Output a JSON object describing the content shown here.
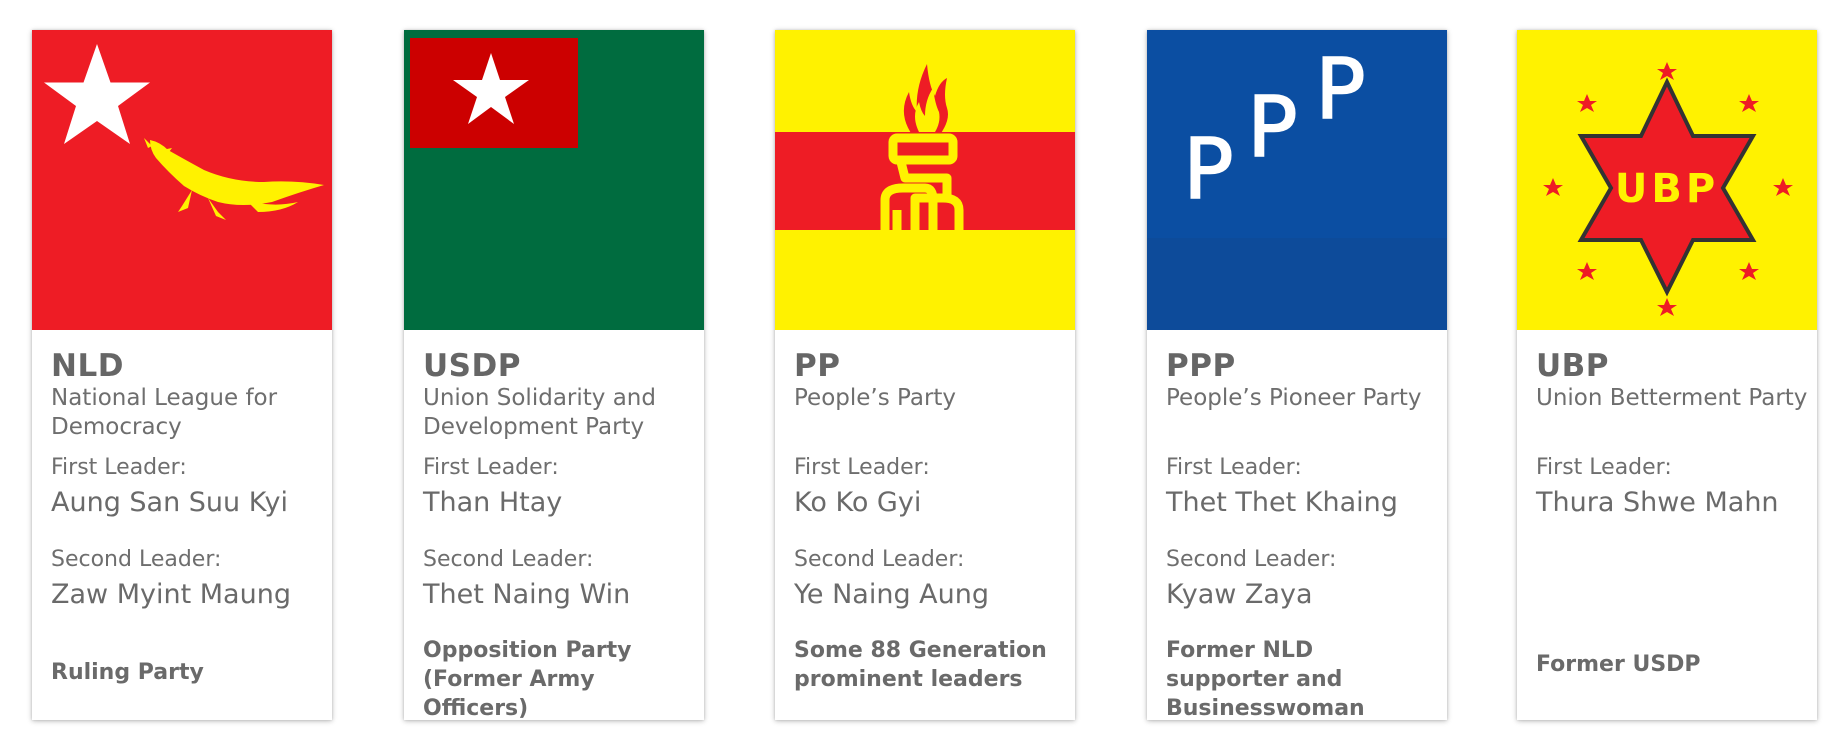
{
  "colors": {
    "red": "#ee1c25",
    "yellow": "#fff200",
    "green": "#006c3f",
    "blue": "#0b4ea2",
    "dark_red": "#cc0000",
    "text": "#666666"
  },
  "parties": [
    {
      "abbr": "NLD",
      "name": "National League for Democracy",
      "first_leader_label": "First Leader:",
      "first_leader": "Aung San Suu Kyi",
      "second_leader_label": "Second Leader:",
      "second_leader": "Zaw Myint Maung",
      "note": "Ruling Party",
      "flag_icon": "nld-flag-star-peacock-icon"
    },
    {
      "abbr": "USDP",
      "name": "Union Solidarity and Development Party",
      "first_leader_label": "First Leader:",
      "first_leader": "Than Htay",
      "second_leader_label": "Second Leader:",
      "second_leader": "Thet Naing Win",
      "note": "Opposition Party (Former Army Officers)",
      "flag_icon": "usdp-flag-star-icon"
    },
    {
      "abbr": "PP",
      "name": "People’s Party",
      "first_leader_label": "First Leader:",
      "first_leader": "Ko Ko Gyi",
      "second_leader_label": "Second Leader:",
      "second_leader": "Ye Naing Aung",
      "note": "Some 88 Generation prominent leaders",
      "flag_icon": "pp-flag-torch-icon"
    },
    {
      "abbr": "PPP",
      "name": "People’s Pioneer Party",
      "first_leader_label": "First Leader:",
      "first_leader": "Thet Thet Khaing",
      "second_leader_label": "Second Leader:",
      "second_leader": "Kyaw Zaya",
      "note": "Former NLD supporter and Businesswoman",
      "flag_icon": "ppp-flag-letters-icon",
      "flag_text": "P"
    },
    {
      "abbr": "UBP",
      "name": "Union Betterment Party",
      "first_leader_label": "First Leader:",
      "first_leader": "Thura Shwe Mahn",
      "note": "Former USDP",
      "flag_icon": "ubp-flag-hexagram-icon",
      "flag_text": "UBP"
    }
  ]
}
